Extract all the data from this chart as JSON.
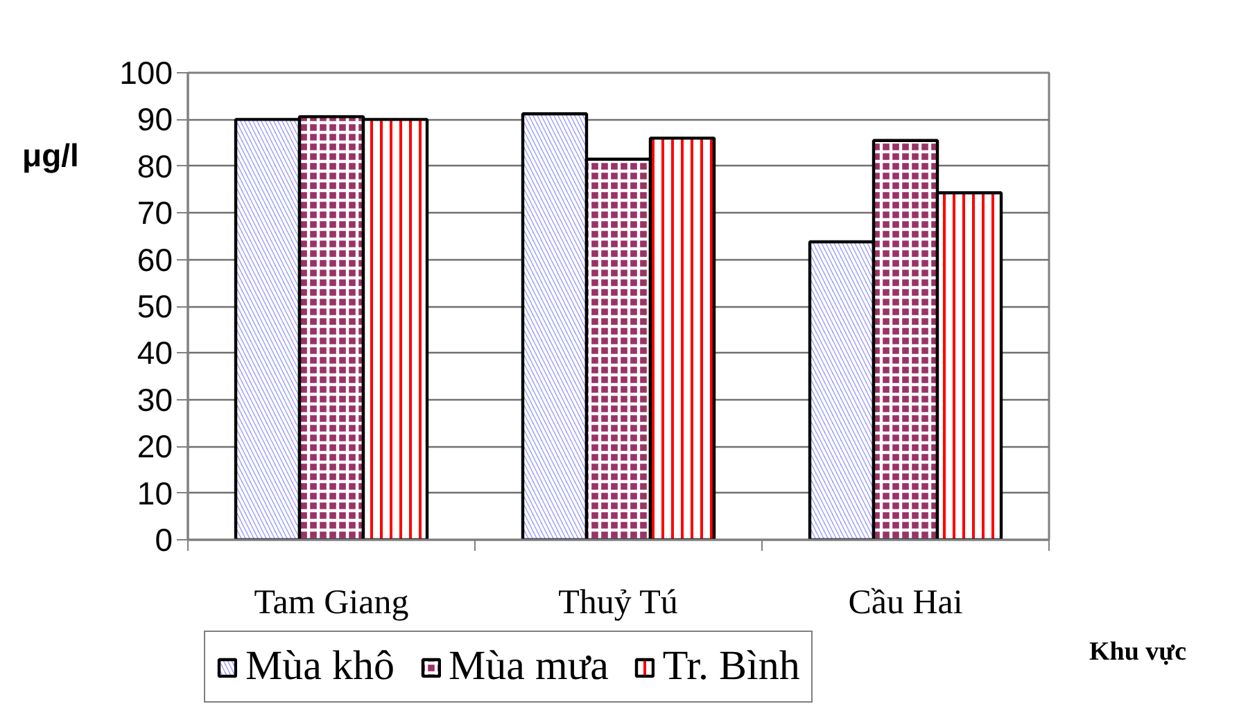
{
  "chart_data": {
    "type": "bar",
    "ylabel": "μg/l",
    "xlabel": "Khu vực",
    "categories": [
      "Tam Giang",
      "Thuỷ Tú",
      "Cầu Hai"
    ],
    "series": [
      {
        "name": "Mùa khô",
        "color": "#9999ff",
        "values": [
          90,
          91.2,
          63.8
        ]
      },
      {
        "name": "Mùa mưa",
        "color": "#993366",
        "values": [
          90.6,
          81.5,
          85.5
        ]
      },
      {
        "name": "Tr. Bình",
        "color": "#ff0000",
        "values": [
          90,
          86,
          74.3
        ]
      }
    ],
    "ylim": [
      0,
      100
    ],
    "yticks": [
      0,
      10,
      20,
      30,
      40,
      50,
      60,
      70,
      80,
      90,
      100
    ],
    "grid": "y",
    "legend": "bottom"
  }
}
